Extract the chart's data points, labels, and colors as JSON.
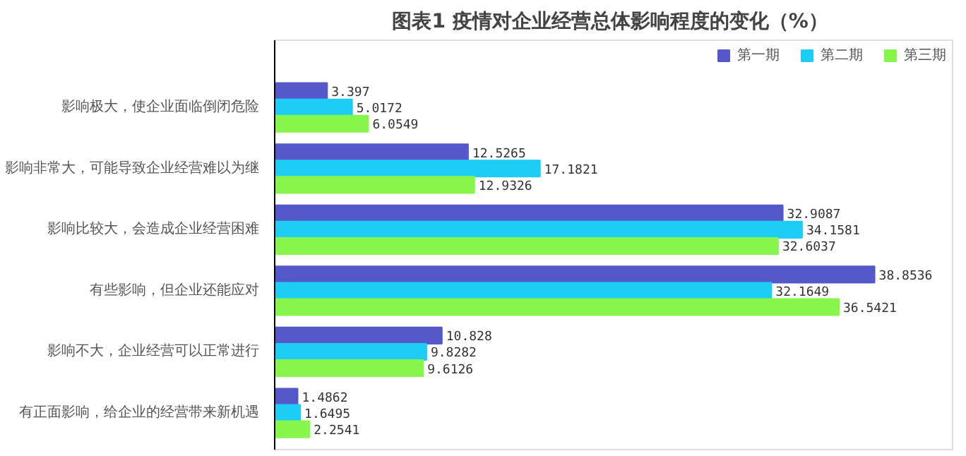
{
  "chart_data": {
    "type": "bar",
    "orientation": "horizontal",
    "title": "图表1  疫情对企业经营总体影响程度的变化（%）",
    "categories": [
      "影响极大，使企业面临倒闭危险",
      "影响非常大，可能导致企业经营难以为继",
      "影响比较大，会造成企业经营困难",
      "有些影响，但企业还能应对",
      "影响不大，企业经营可以正常进行",
      "有正面影响，给企业的经营带来新机遇"
    ],
    "series": [
      {
        "name": "第一期",
        "color": "#5558c8",
        "values": [
          3.397,
          12.5265,
          32.9087,
          38.8536,
          10.828,
          1.4862
        ]
      },
      {
        "name": "第二期",
        "color": "#1ecdf5",
        "values": [
          5.0172,
          17.1821,
          34.1581,
          32.1649,
          9.8282,
          1.6495
        ]
      },
      {
        "name": "第三期",
        "color": "#88f54c",
        "values": [
          6.0549,
          12.9326,
          32.6037,
          36.5421,
          9.6126,
          2.2541
        ]
      }
    ],
    "data_labels": true,
    "legend": "top right",
    "grid": false
  }
}
